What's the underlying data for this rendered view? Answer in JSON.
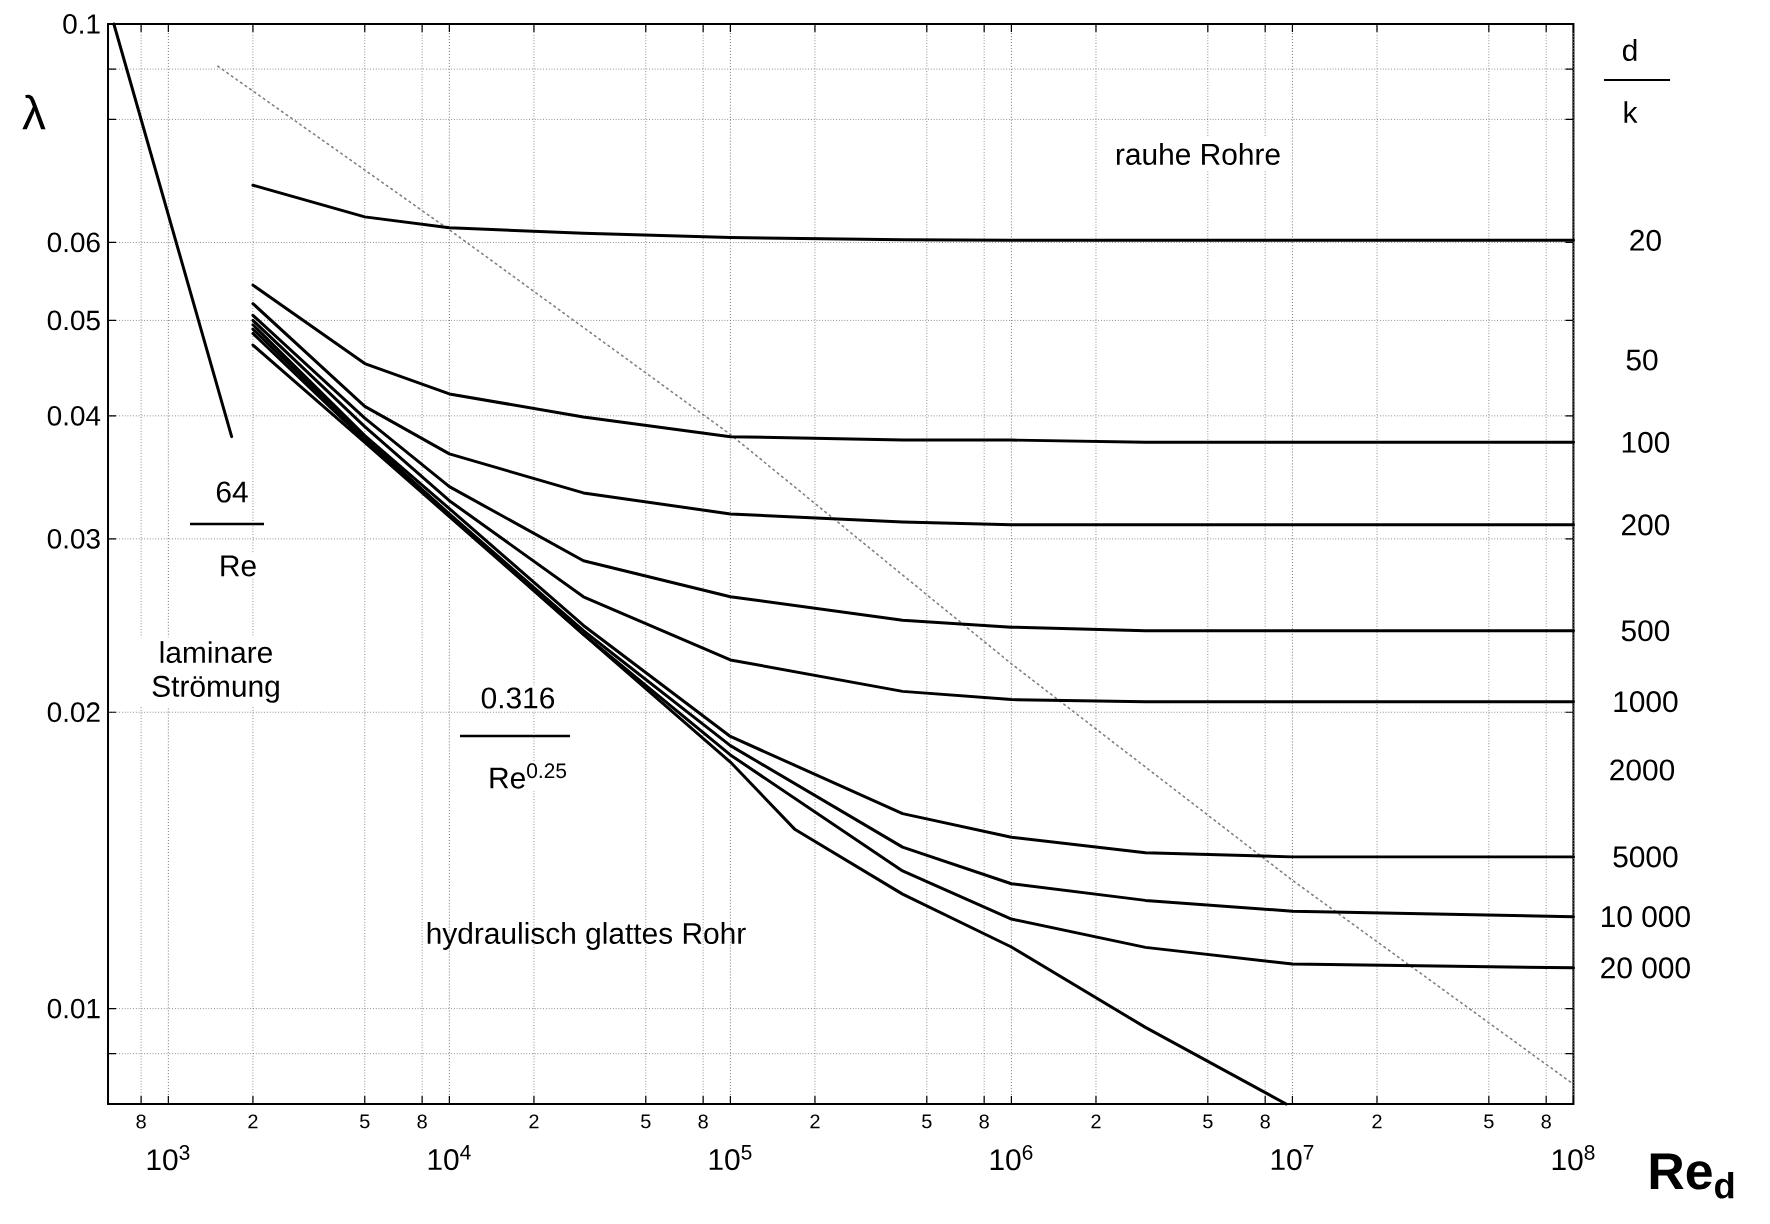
{
  "chart_data": {
    "type": "line",
    "xlabel": "**Re$_{d}$**",
    "ylabel": "λ",
    "log": "xy",
    "grid": true,
    "legend": "right",
    "marker": "none",
    "xlim": [
      610,
      100000000
    ],
    "ylim": [
      0.008,
      0.1
    ],
    "xticks": [
      {
        "value": 800,
        "label": null
      },
      {
        "value": 1000,
        "label": "10$^{3}$"
      },
      {
        "value": 2000,
        "label": null
      },
      {
        "value": 5000,
        "label": null
      },
      {
        "value": 8000,
        "label": null
      },
      {
        "value": 10000,
        "label": "10$^{4}$"
      },
      {
        "value": 20000,
        "label": null
      },
      {
        "value": 50000,
        "label": null
      },
      {
        "value": 80000,
        "label": null
      },
      {
        "value": 100000,
        "label": "10$^{5}$"
      },
      {
        "value": 200000,
        "label": null
      },
      {
        "value": 500000,
        "label": null
      },
      {
        "value": 800000,
        "label": null
      },
      {
        "value": 1000000,
        "label": "10$^{6}$"
      },
      {
        "value": 2000000,
        "label": null
      },
      {
        "value": 5000000,
        "label": null
      },
      {
        "value": 8000000,
        "label": null
      },
      {
        "value": 10000000,
        "label": "10$^{7}$"
      },
      {
        "value": 20000000,
        "label": null
      },
      {
        "value": 50000000,
        "label": null
      },
      {
        "value": 80000000,
        "label": null
      },
      {
        "value": 100000000,
        "label": "10$^{8}$"
      }
    ],
    "yticks": [
      0.1,
      {
        "value": 0.09,
        "label": null
      },
      {
        "value": 0.08,
        "label": null
      },
      0.06,
      0.05,
      0.04,
      0.03,
      0.02,
      0.01,
      {
        "value": 0.009,
        "label": null
      }
    ],
    "series": [
      {
        "color": "#000000",
        "x": [
          640,
          1680
        ],
        "values": [
          0.1,
          0.0381
        ]
      },
      {
        "color": "#000000",
        "x": [
          2000,
          5000,
          10000,
          30000,
          100000,
          170000,
          410000,
          1000000,
          3000000,
          9500000
        ],
        "values": [
          0.0472,
          0.0376,
          0.0316,
          0.024,
          0.0178,
          0.0152,
          0.01307,
          0.01155,
          0.00957,
          0.008
        ]
      },
      {
        "color": "#808080",
        "line_style": "dotted",
        "x": [
          1500,
          10000,
          100000,
          1000000,
          10000000,
          100000000
        ],
        "values": [
          0.0906,
          0.0618,
          0.0383,
          0.0224,
          0.0135,
          0.00838
        ]
      },
      {
        "name": "20",
        "color": "#000000",
        "x": [
          2000,
          5000,
          10000,
          30000,
          100000,
          410000,
          1000000,
          3000000,
          10000000,
          100000000
        ],
        "values": [
          0.0686,
          0.0637,
          0.0621,
          0.0613,
          0.0607,
          0.0604,
          0.0603,
          0.0603,
          0.0603,
          0.0603
        ]
      },
      {
        "name": "100",
        "color": "#000000",
        "x": [
          2000,
          5000,
          10000,
          30000,
          100000,
          410000,
          1000000,
          3000000,
          10000000,
          100000000
        ],
        "values": [
          0.0543,
          0.0452,
          0.0421,
          0.0399,
          0.0381,
          0.0378,
          0.0378,
          0.0376,
          0.0376,
          0.0376
        ]
      },
      {
        "name": "200",
        "color": "#000000",
        "x": [
          2000,
          5000,
          10000,
          30000,
          100000,
          410000,
          1000000,
          3000000,
          10000000,
          100000000
        ],
        "values": [
          0.052,
          0.0409,
          0.0366,
          0.0334,
          0.0318,
          0.0312,
          0.031,
          0.031,
          0.031,
          0.031
        ]
      },
      {
        "name": "500",
        "color": "#000000",
        "x": [
          2000,
          5000,
          10000,
          30000,
          100000,
          410000,
          1000000,
          3000000,
          10000000,
          100000000
        ],
        "values": [
          0.0506,
          0.0398,
          0.0339,
          0.0285,
          0.0262,
          0.0248,
          0.0244,
          0.0242,
          0.0242,
          0.0242
        ]
      },
      {
        "name": "1000",
        "color": "#000000",
        "x": [
          2000,
          5000,
          10000,
          30000,
          100000,
          410000,
          1000000,
          3000000,
          10000000,
          100000000
        ],
        "values": [
          0.05,
          0.039,
          0.0328,
          0.0262,
          0.0226,
          0.021,
          0.0206,
          0.0205,
          0.0205,
          0.0205
        ]
      },
      {
        "name": "5000",
        "color": "#000000",
        "x": [
          2000,
          5000,
          10000,
          30000,
          100000,
          410000,
          1000000,
          3000000,
          10000000,
          100000000
        ],
        "values": [
          0.0495,
          0.0382,
          0.0322,
          0.0245,
          0.0189,
          0.01578,
          0.01493,
          0.0144,
          0.01426,
          0.01426
        ]
      },
      {
        "name": "10 000",
        "color": "#000000",
        "x": [
          2000,
          5000,
          10000,
          30000,
          100000,
          410000,
          1000000,
          3000000,
          10000000,
          100000000
        ],
        "values": [
          0.049,
          0.038,
          0.0318,
          0.0242,
          0.0185,
          0.01459,
          0.01339,
          0.01288,
          0.01256,
          0.0124
        ]
      },
      {
        "name": "20 000",
        "color": "#000000",
        "x": [
          2000,
          5000,
          10000,
          30000,
          100000,
          410000,
          1000000,
          3000000,
          10000000,
          100000000
        ],
        "values": [
          0.0485,
          0.0378,
          0.0317,
          0.024,
          0.0181,
          0.0138,
          0.01233,
          0.01154,
          0.0111,
          0.011
        ]
      }
    ],
    "annotations": [
      "rauhe Rohre",
      "laminare Strömung",
      "hydraulisch glattes Rohr",
      "64",
      "Re",
      "0.316",
      "Re$^{0.25}$",
      "d",
      "k",
      "50",
      "2000",
      "8",
      "2",
      "5",
      "8",
      "2",
      "5",
      "8",
      "2",
      "5",
      "8",
      "2",
      "5",
      "8",
      "2",
      "5",
      "8"
    ]
  }
}
